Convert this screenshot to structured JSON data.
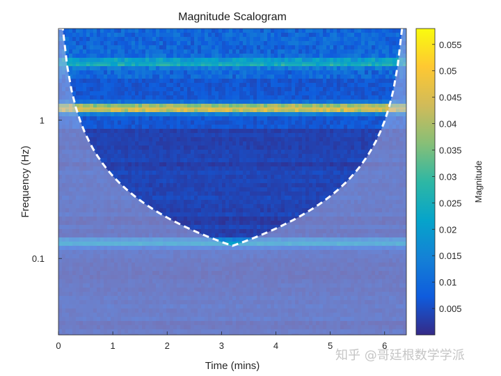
{
  "chart_data": {
    "type": "heatmap",
    "title": "Magnitude Scalogram",
    "xlabel": "Time (mins)",
    "ylabel": "Frequency (Hz)",
    "colorbar_label": "Magnitude",
    "x_ticks": [
      0,
      1,
      2,
      3,
      4,
      5,
      6
    ],
    "x_range": [
      0,
      6.4
    ],
    "y_scale": "log",
    "y_range": [
      0.028,
      4.6
    ],
    "y_ticks": [
      {
        "value": 0.1,
        "label": "0.1"
      },
      {
        "value": 1,
        "label": "1"
      }
    ],
    "colorbar_range": [
      0,
      0.058
    ],
    "colorbar_ticks": [
      0.005,
      0.01,
      0.015,
      0.02,
      0.025,
      0.03,
      0.035,
      0.04,
      0.045,
      0.05,
      0.055
    ],
    "colormap": "parula",
    "cone_of_influence": "white dashed line, shaded outside",
    "bands": [
      {
        "freq_hz": 1.22,
        "peak_magnitude": 0.047
      },
      {
        "freq_hz": 2.6,
        "peak_magnitude": 0.02
      },
      {
        "freq_hz": 0.13,
        "peak_magnitude": 0.021
      }
    ]
  },
  "watermark": "知乎 @哥廷根数学学派"
}
